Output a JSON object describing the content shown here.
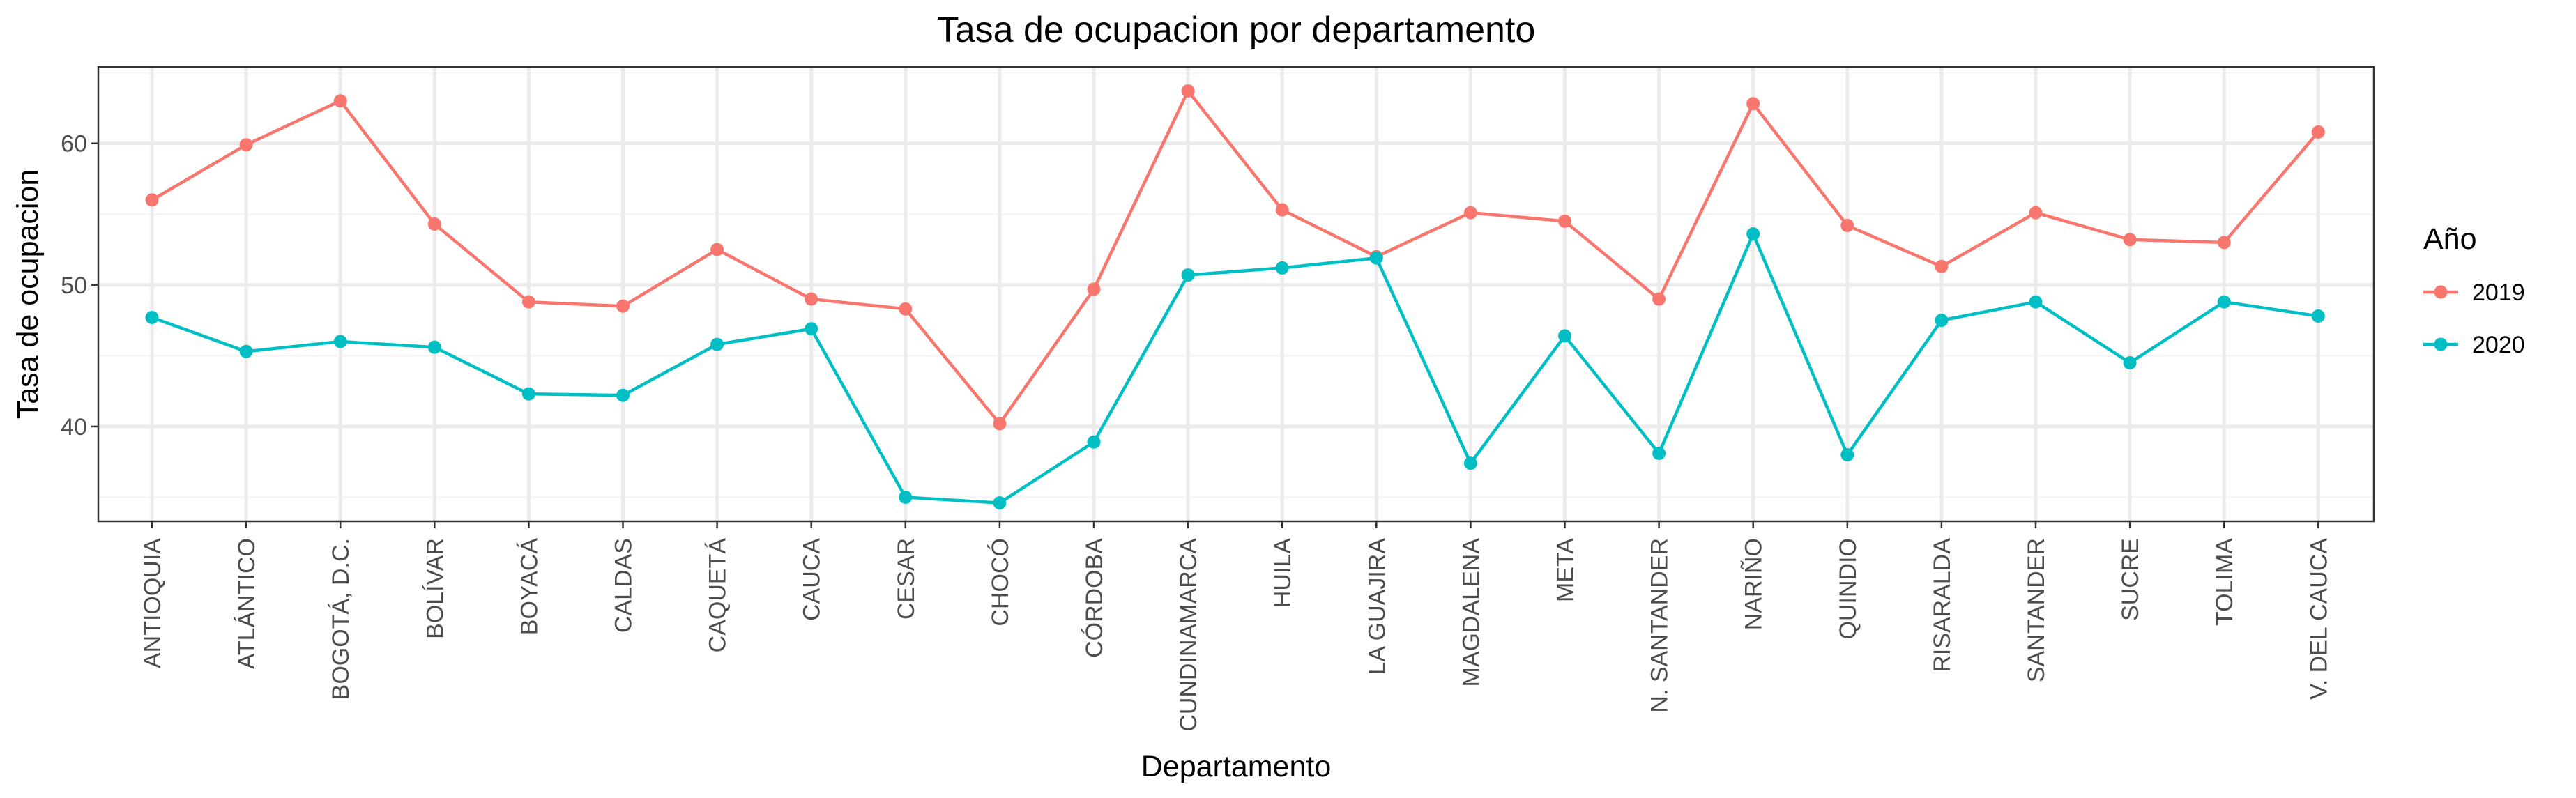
{
  "chart_data": {
    "type": "line",
    "title": "Tasa de ocupacion por departamento",
    "xlabel": "Departamento",
    "ylabel": "Tasa de ocupacion",
    "categories": [
      "ANTIOQUIA",
      "ATLÁNTICO",
      "BOGOTÁ, D.C.",
      "BOLÍVAR",
      "BOYACÁ",
      "CALDAS",
      "CAQUETÁ",
      "CAUCA",
      "CESAR",
      "CHOCÓ",
      "CÓRDOBA",
      "CUNDINAMARCA",
      "HUILA",
      "LA GUAJIRA",
      "MAGDALENA",
      "META",
      "N. SANTANDER",
      "NARIÑO",
      "QUINDIO",
      "RISARALDA",
      "SANTANDER",
      "SUCRE",
      "TOLIMA",
      "V. DEL CAUCA"
    ],
    "ylim": [
      33.3,
      65.4
    ],
    "yticks": [
      40,
      50,
      60
    ],
    "ytick_labels": [
      "40",
      "50",
      "60"
    ],
    "grid": true,
    "legend_title": "Año",
    "legend_position": "right",
    "series": [
      {
        "name": "2019",
        "color": "#F8766D",
        "values": [
          56.0,
          59.9,
          63.0,
          54.3,
          48.8,
          48.5,
          52.5,
          49.0,
          48.3,
          40.2,
          49.7,
          63.7,
          55.3,
          52.0,
          55.1,
          54.5,
          49.0,
          62.8,
          54.2,
          51.3,
          55.1,
          53.2,
          53.0,
          60.8
        ]
      },
      {
        "name": "2020",
        "color": "#00BFC4",
        "values": [
          47.7,
          45.3,
          46.0,
          45.6,
          42.3,
          42.2,
          45.8,
          46.9,
          35.0,
          34.6,
          38.9,
          50.7,
          51.2,
          51.9,
          37.4,
          46.4,
          38.1,
          53.6,
          38.0,
          47.5,
          48.8,
          44.5,
          48.8,
          47.8
        ]
      }
    ]
  }
}
